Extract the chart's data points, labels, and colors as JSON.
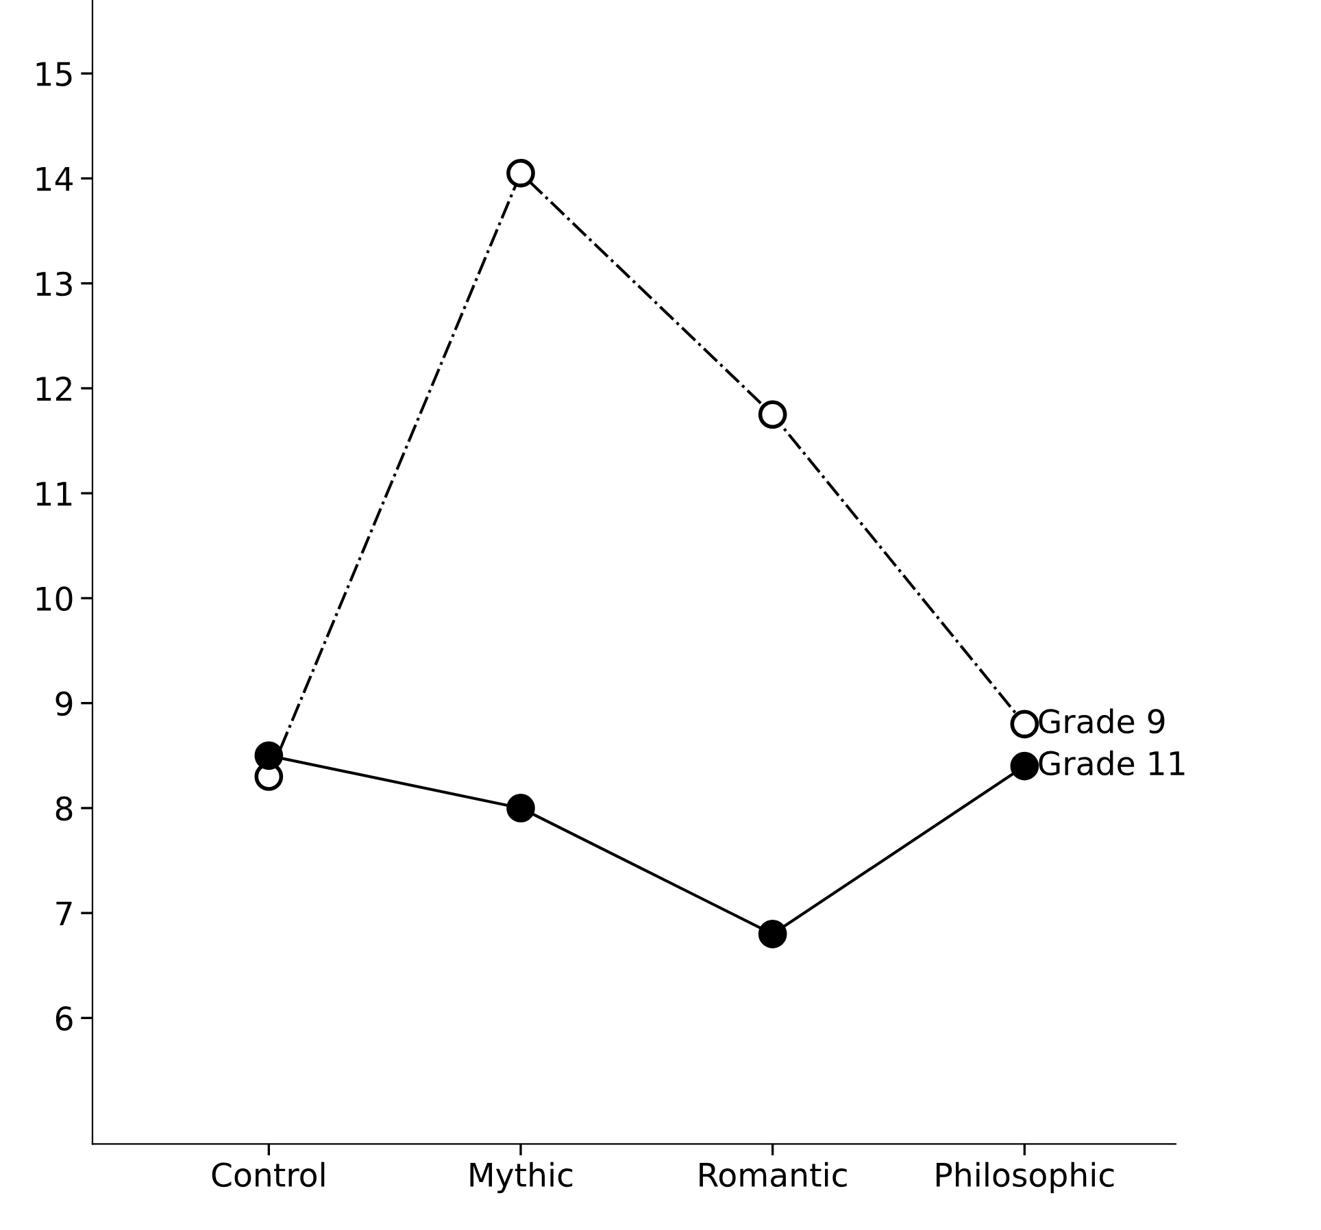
{
  "chart_data": {
    "type": "line",
    "categories": [
      "Control",
      "Mythic",
      "Romantic",
      "Philosophic"
    ],
    "series": [
      {
        "name": "Grade 9",
        "color": "#000000",
        "values": [
          8.3,
          14.05,
          11.75,
          8.8
        ],
        "line_style": "dashdot"
      },
      {
        "name": "Grade 11",
        "color": "#000000",
        "values": [
          8.5,
          8.0,
          6.8,
          8.4
        ],
        "line_style": "solid"
      }
    ],
    "ylim": [
      4.8,
      15.7
    ],
    "yticks": [
      6,
      7,
      8,
      9,
      10,
      11,
      12,
      13,
      14,
      15
    ],
    "marker": "circle",
    "grid": false,
    "legend": false
  }
}
